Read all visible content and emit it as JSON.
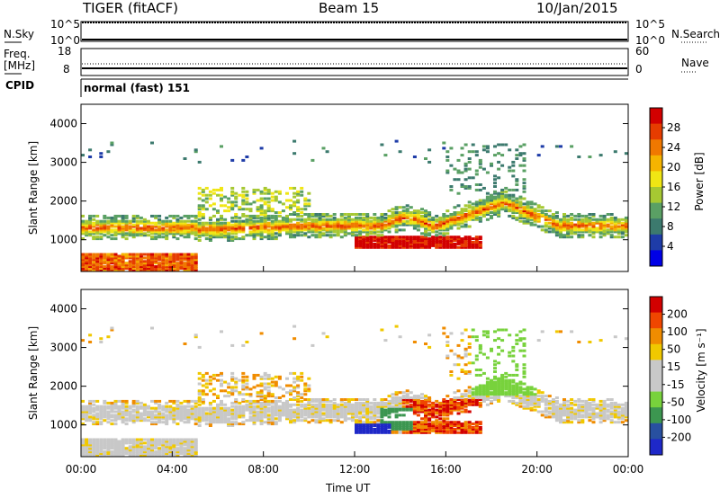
{
  "header": {
    "radar": "TIGER (fitACF)",
    "beam": "Beam 15",
    "date": "10/Jan/2015"
  },
  "strip_panels": {
    "nsky": {
      "label": "N.Sky",
      "ticks": [
        "10^5",
        "10^0"
      ]
    },
    "freq": {
      "label_line1": "Freq.",
      "label_line2": "[MHz]",
      "left_ticks": [
        "18",
        "8"
      ],
      "right_ticks": [
        "60",
        "0"
      ]
    },
    "right_labels": {
      "nsearch": "N.Search",
      "nave": "Nave"
    },
    "cpid": {
      "label": "CPID",
      "value": "normal (fast) 151"
    }
  },
  "colors": {
    "power_scale": [
      "#0000e6",
      "#1e3ca8",
      "#3c7a6e",
      "#5aa064",
      "#a6c832",
      "#f0e614",
      "#f5b400",
      "#f07800",
      "#e63c00",
      "#d20000"
    ],
    "velocity_scale": [
      "#1e28c8",
      "#2850a0",
      "#3c9650",
      "#78d23c",
      "#c8c8c8",
      "#c8c8c8",
      "#f0c800",
      "#f08c00",
      "#f04600",
      "#d20000"
    ]
  },
  "chart_data": [
    {
      "type": "heatmap",
      "name": "Backscatter power",
      "ylabel": "Slant Range [km]",
      "ylim": [
        180,
        4500
      ],
      "yticks": [
        1000,
        2000,
        3000,
        4000
      ],
      "colorbar": {
        "label": "Power [dB]",
        "ticks": [
          "28",
          "24",
          "20",
          "16",
          "12",
          "8",
          "4"
        ],
        "range": [
          0,
          30
        ]
      }
    },
    {
      "type": "heatmap",
      "name": "Line-of-sight velocity",
      "ylabel": "Slant Range [km]",
      "xlabel": "Time UT",
      "ylim": [
        180,
        4500
      ],
      "yticks": [
        1000,
        2000,
        3000,
        4000
      ],
      "xticks": [
        "00:00",
        "04:00",
        "08:00",
        "12:00",
        "16:00",
        "20:00",
        "00:00"
      ],
      "xlim_hours": [
        0,
        24
      ],
      "colorbar": {
        "label": "Velocity [m s⁻¹]",
        "ticks": [
          "200",
          "100",
          "50",
          "15",
          "-15",
          "-50",
          "-100",
          "-200"
        ]
      }
    }
  ]
}
